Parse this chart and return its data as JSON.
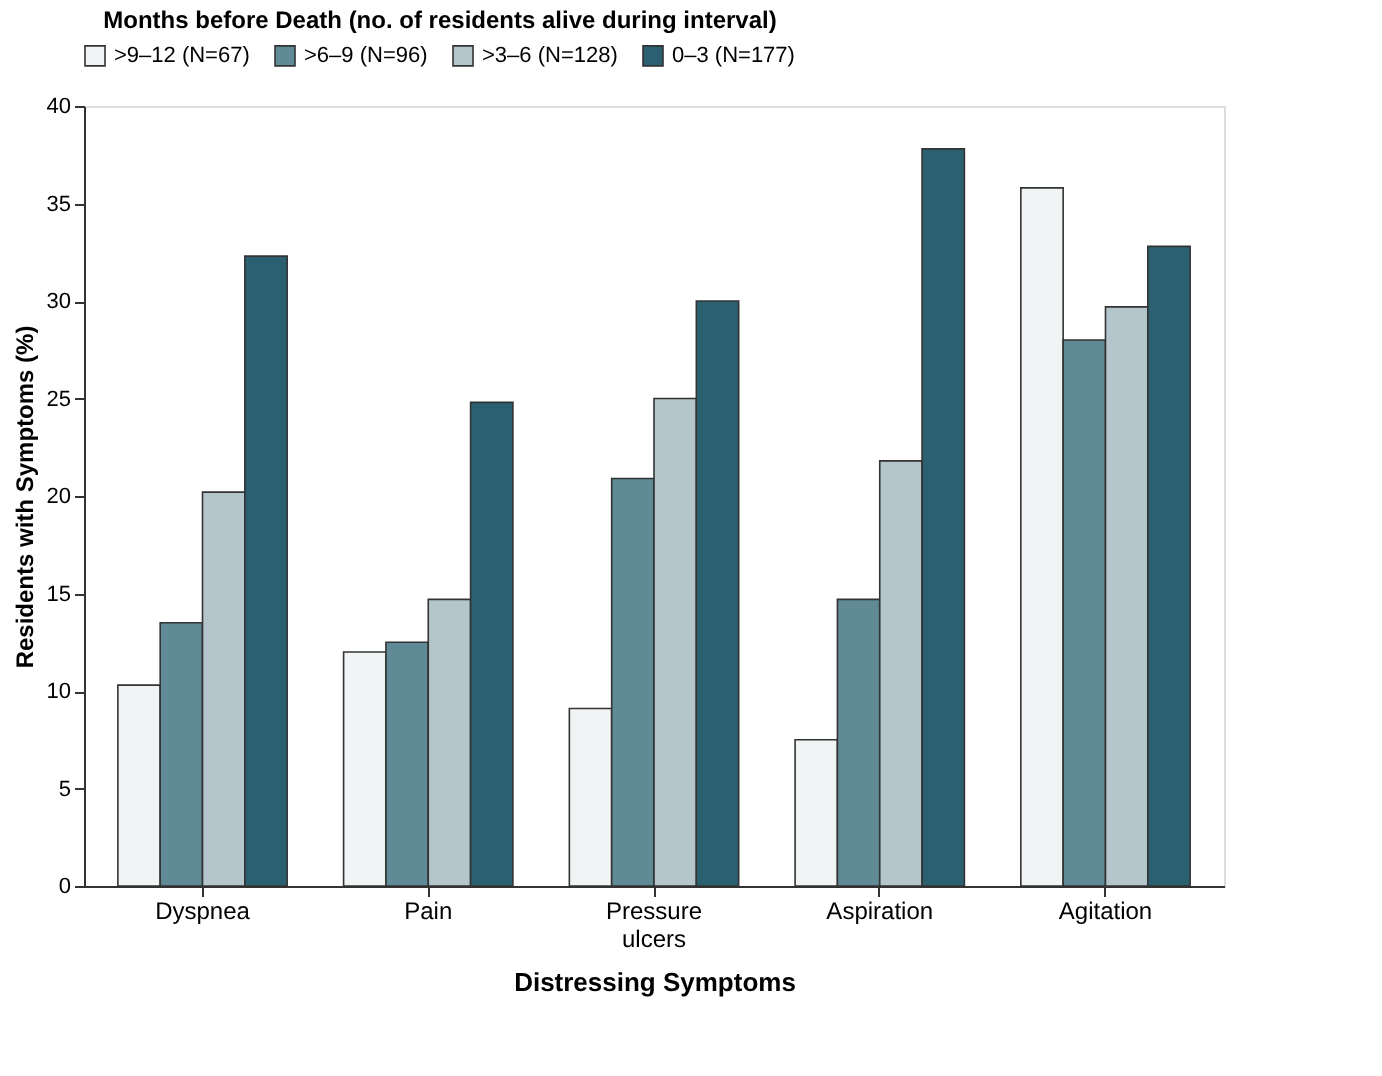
{
  "chart_data": {
    "type": "bar",
    "legend_title": "Months before Death (no. of residents alive during interval)",
    "xlabel": "Distressing Symptoms",
    "ylabel": "Residents with Symptoms (%)",
    "categories": [
      "Dyspnea",
      "Pain",
      "Pressure ulcers",
      "Aspiration",
      "Agitation"
    ],
    "series": [
      {
        "name": ">9–12 (N=67)",
        "color": "#f1f4f4",
        "values": [
          10.3,
          12.0,
          9.1,
          7.5,
          35.8
        ]
      },
      {
        "name": ">6–9 (N=96)",
        "color": "#5f8a96",
        "values": [
          13.5,
          12.5,
          20.9,
          14.7,
          28.0
        ]
      },
      {
        "name": ">3–6 (N=128)",
        "color": "#b4c5cc",
        "values": [
          20.2,
          14.7,
          25.0,
          21.8,
          29.7
        ]
      },
      {
        "name": "0–3 (N=177)",
        "color": "#2b6070",
        "values": [
          32.3,
          24.8,
          30.0,
          37.8,
          32.8
        ]
      }
    ],
    "ylim": [
      0,
      40
    ],
    "yticks": [
      0,
      5,
      10,
      15,
      20,
      25,
      30,
      35,
      40
    ],
    "grid": false,
    "legend": "top"
  }
}
